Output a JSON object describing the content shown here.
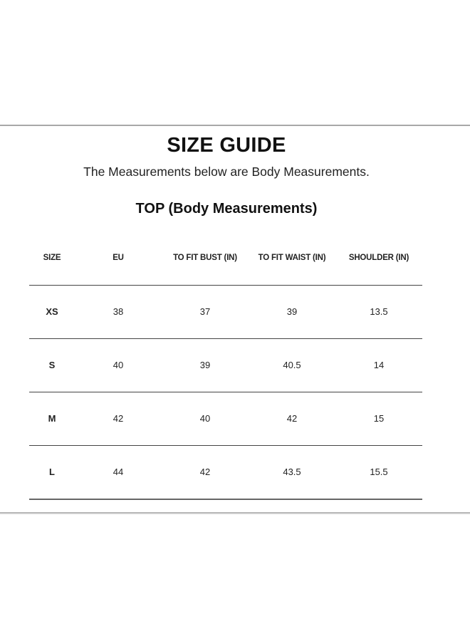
{
  "title": "SIZE GUIDE",
  "subtitle": "The Measurements below are Body Measurements.",
  "section_title": "TOP (Body Measurements)",
  "table": {
    "headers": [
      "SIZE",
      "EU",
      "TO FIT BUST (IN)",
      "TO FIT WAIST (IN)",
      "SHOULDER (IN)"
    ],
    "rows": [
      [
        "XS",
        "38",
        "37",
        "39",
        "13.5"
      ],
      [
        "S",
        "40",
        "39",
        "40.5",
        "14"
      ],
      [
        "M",
        "42",
        "40",
        "42",
        "15"
      ],
      [
        "L",
        "44",
        "42",
        "43.5",
        "15.5"
      ]
    ]
  }
}
